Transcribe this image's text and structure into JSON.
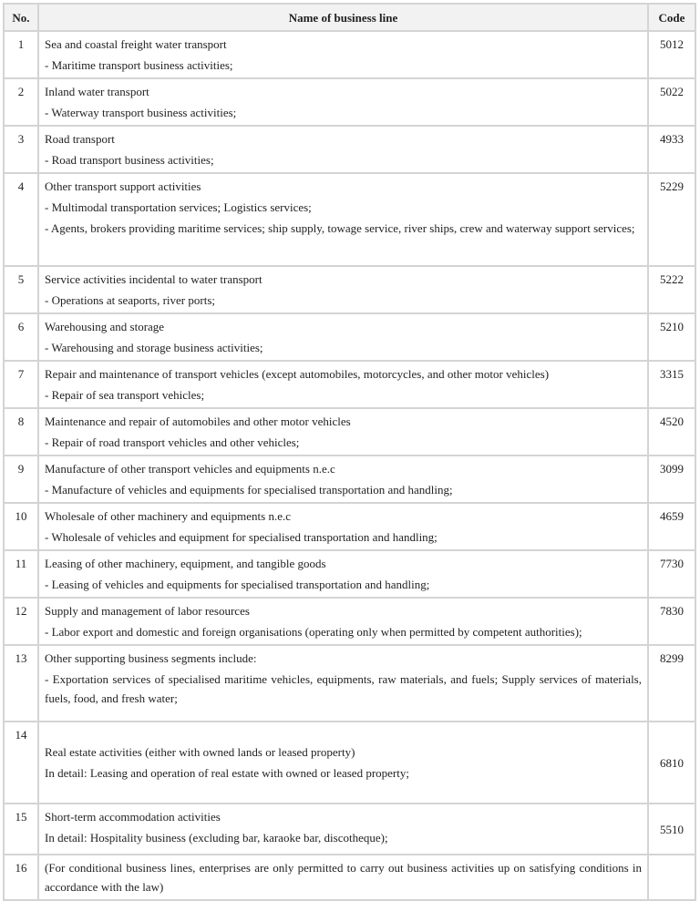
{
  "header": {
    "no": "No.",
    "name": "Name of business line",
    "code": "Code"
  },
  "rows": [
    {
      "no": "1",
      "lines": [
        "Sea and coastal freight water transport",
        "- Maritime transport business activities;"
      ],
      "code": "5012"
    },
    {
      "no": "2",
      "lines": [
        "Inland water transport",
        "- Waterway transport business activities;"
      ],
      "code": "5022"
    },
    {
      "no": "3",
      "lines": [
        "Road transport",
        "- Road transport business activities;"
      ],
      "code": "4933"
    },
    {
      "no": "4",
      "lines": [
        "Other transport support activities",
        "- Multimodal transportation services; Logistics services;",
        "- Agents, brokers providing maritime services; ship supply, towage service, river ships, crew and waterway support services;"
      ],
      "code": "5229"
    },
    {
      "no": "5",
      "lines": [
        "Service activities incidental to water transport",
        "- Operations at seaports, river ports;"
      ],
      "code": "5222"
    },
    {
      "no": "6",
      "lines": [
        "Warehousing and storage",
        "- Warehousing and storage business activities;"
      ],
      "code": "5210"
    },
    {
      "no": "7",
      "lines": [
        "Repair and maintenance of transport vehicles (except automobiles, motorcycles, and other motor vehicles)",
        "- Repair of sea transport vehicles;"
      ],
      "code": "3315"
    },
    {
      "no": "8",
      "lines": [
        "Maintenance and repair of automobiles and other motor vehicles",
        "- Repair of road transport vehicles and other vehicles;"
      ],
      "code": "4520"
    },
    {
      "no": "9",
      "lines": [
        "Manufacture of other transport vehicles and equipments n.e.c",
        "- Manufacture of vehicles and equipments for specialised transportation and handling;"
      ],
      "code": "3099"
    },
    {
      "no": "10",
      "lines": [
        "Wholesale of other machinery and equipments n.e.c",
        "- Wholesale of vehicles and equipment for specialised transportation and handling;"
      ],
      "code": "4659"
    },
    {
      "no": "11",
      "lines": [
        "Leasing of other machinery, equipment, and tangible goods",
        "- Leasing of vehicles and equipments for specialised transportation and handling;"
      ],
      "code": "7730"
    },
    {
      "no": "12",
      "lines": [
        "Supply and management of labor resources",
        "- Labor export and domestic and foreign organisations (operating only when permitted by competent authorities);"
      ],
      "code": "7830"
    },
    {
      "no": "13",
      "lines": [
        "Other supporting business segments include:",
        "- Exportation services of specialised maritime vehicles, equipments, raw materials, and fuels; Supply services of materials, fuels, food, and fresh water;"
      ],
      "code": "8299"
    },
    {
      "no": "14",
      "lines": [
        "Real estate activities (either with owned lands or leased property)",
        "In detail: Leasing and operation of real estate with owned or leased property;"
      ],
      "code": "6810"
    },
    {
      "no": "15",
      "lines": [
        "Short-term accommodation activities",
        "In detail: Hospitality business (excluding bar, karaoke bar, discotheque);"
      ],
      "code": "5510"
    },
    {
      "no": "16",
      "lines": [
        "(For conditional business lines, enterprises are only permitted to carry out business activities up on satisfying conditions in accordance with the law)"
      ],
      "code": ""
    }
  ]
}
